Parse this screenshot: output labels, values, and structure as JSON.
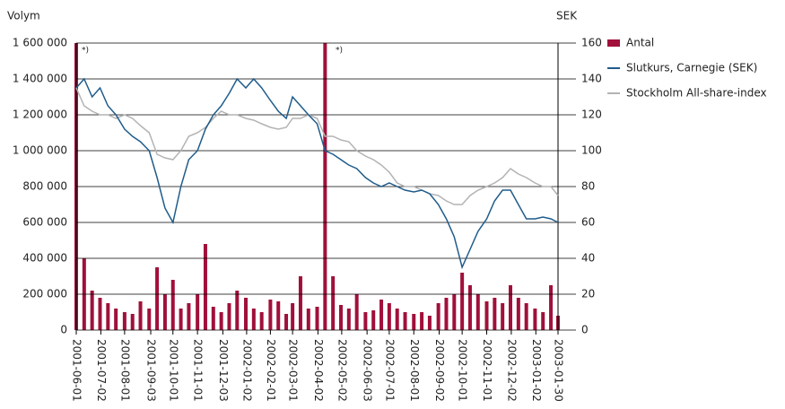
{
  "chart_data": {
    "type": "bar-line",
    "ylabel": "Volym",
    "y2label": "SEK",
    "annotations": [
      "*)",
      "*)"
    ],
    "x": [
      "2001-06-01",
      "2001-06-11",
      "2001-06-21",
      "2001-07-01",
      "2001-07-11",
      "2001-07-21",
      "2001-08-01",
      "2001-08-11",
      "2001-08-21",
      "2001-09-01",
      "2001-09-11",
      "2001-09-21",
      "2001-10-01",
      "2001-10-11",
      "2001-10-21",
      "2001-11-01",
      "2001-11-11",
      "2001-11-21",
      "2001-12-01",
      "2001-12-11",
      "2001-12-21",
      "2002-01-01",
      "2002-01-11",
      "2002-01-21",
      "2002-02-01",
      "2002-02-11",
      "2002-02-21",
      "2002-03-01",
      "2002-03-11",
      "2002-03-21",
      "2002-04-01",
      "2002-04-11",
      "2002-04-21",
      "2002-05-01",
      "2002-05-11",
      "2002-05-21",
      "2002-06-01",
      "2002-06-11",
      "2002-06-21",
      "2002-07-01",
      "2002-07-11",
      "2002-07-21",
      "2002-08-01",
      "2002-08-11",
      "2002-08-21",
      "2002-09-01",
      "2002-09-11",
      "2002-09-21",
      "2002-10-01",
      "2002-10-11",
      "2002-10-21",
      "2002-11-01",
      "2002-11-11",
      "2002-11-21",
      "2002-12-01",
      "2002-12-11",
      "2002-12-21",
      "2003-01-01",
      "2003-01-11",
      "2003-01-21",
      "2003-01-30"
    ],
    "series": [
      {
        "name": "Antal",
        "type": "bar",
        "color": "#a0103a",
        "values": [
          1600000,
          400000,
          220000,
          180000,
          150000,
          120000,
          100000,
          90000,
          160000,
          120000,
          350000,
          200000,
          280000,
          120000,
          150000,
          200000,
          480000,
          130000,
          100000,
          150000,
          220000,
          180000,
          120000,
          100000,
          170000,
          160000,
          90000,
          150000,
          300000,
          120000,
          130000,
          1600000,
          300000,
          140000,
          120000,
          200000,
          100000,
          110000,
          170000,
          150000,
          120000,
          100000,
          90000,
          100000,
          80000,
          150000,
          180000,
          200000,
          320000,
          250000,
          200000,
          160000,
          180000,
          150000,
          250000,
          180000,
          150000,
          120000,
          100000,
          250000,
          80000
        ]
      },
      {
        "name": "Slutkurs, Carnegie (SEK)",
        "type": "line",
        "axis": "y2",
        "color": "#1f5c8b",
        "values": [
          135,
          140,
          130,
          135,
          125,
          120,
          112,
          108,
          105,
          100,
          85,
          68,
          60,
          80,
          95,
          100,
          112,
          120,
          125,
          132,
          140,
          135,
          140,
          135,
          128,
          122,
          118,
          130,
          125,
          120,
          115,
          100,
          98,
          95,
          92,
          90,
          85,
          82,
          80,
          82,
          80,
          78,
          77,
          78,
          76,
          70,
          62,
          52,
          35,
          45,
          55,
          62,
          72,
          78,
          78,
          70,
          62,
          62,
          63,
          62,
          60
        ]
      },
      {
        "name": "Stockholm All-share-index",
        "type": "line",
        "axis": "y2",
        "color": "#b3b3b3",
        "values": [
          135,
          125,
          122,
          120,
          120,
          118,
          120,
          118,
          114,
          110,
          98,
          96,
          95,
          100,
          108,
          110,
          113,
          118,
          122,
          120,
          120,
          118,
          117,
          115,
          113,
          112,
          113,
          118,
          118,
          120,
          118,
          108,
          108,
          106,
          105,
          100,
          97,
          95,
          92,
          88,
          82,
          80,
          80,
          78,
          76,
          75,
          72,
          70,
          70,
          75,
          78,
          80,
          82,
          85,
          90,
          87,
          85,
          82,
          80,
          80,
          75
        ]
      }
    ],
    "ylim": [
      0,
      1600000
    ],
    "yticks": [
      0,
      {
        "value": 200000,
        "label": "200 000"
      },
      {
        "value": 400000,
        "label": "400 000"
      },
      {
        "value": 600000,
        "label": "600 000"
      },
      {
        "value": 800000,
        "label": "800 000"
      },
      {
        "value": 1000000,
        "label": "1 000 000"
      },
      {
        "value": 1200000,
        "label": "1 200 000"
      },
      {
        "value": 1400000,
        "label": "1 400 000"
      },
      {
        "value": 1600000,
        "label": "1 600 000"
      }
    ],
    "y2lim": [
      0,
      160
    ],
    "y2ticks": [
      0,
      20,
      40,
      60,
      80,
      100,
      120,
      140,
      160
    ],
    "xticks": [
      "2001-06-01",
      "2001-07-02",
      "2001-08-01",
      "2001-09-03",
      "2001-10-01",
      "2001-11-01",
      "2001-12-03",
      "2002-01-02",
      "2002-02-01",
      "2002-03-01",
      "2002-04-02",
      "2002-05-02",
      "2002-06-03",
      "2002-07-01",
      "2002-08-01",
      "2002-09-02",
      "2002-10-01",
      "2002-11-01",
      "2002-12-02",
      "2003-01-02",
      "2003-01-30"
    ],
    "grid": true,
    "legend": "right"
  }
}
